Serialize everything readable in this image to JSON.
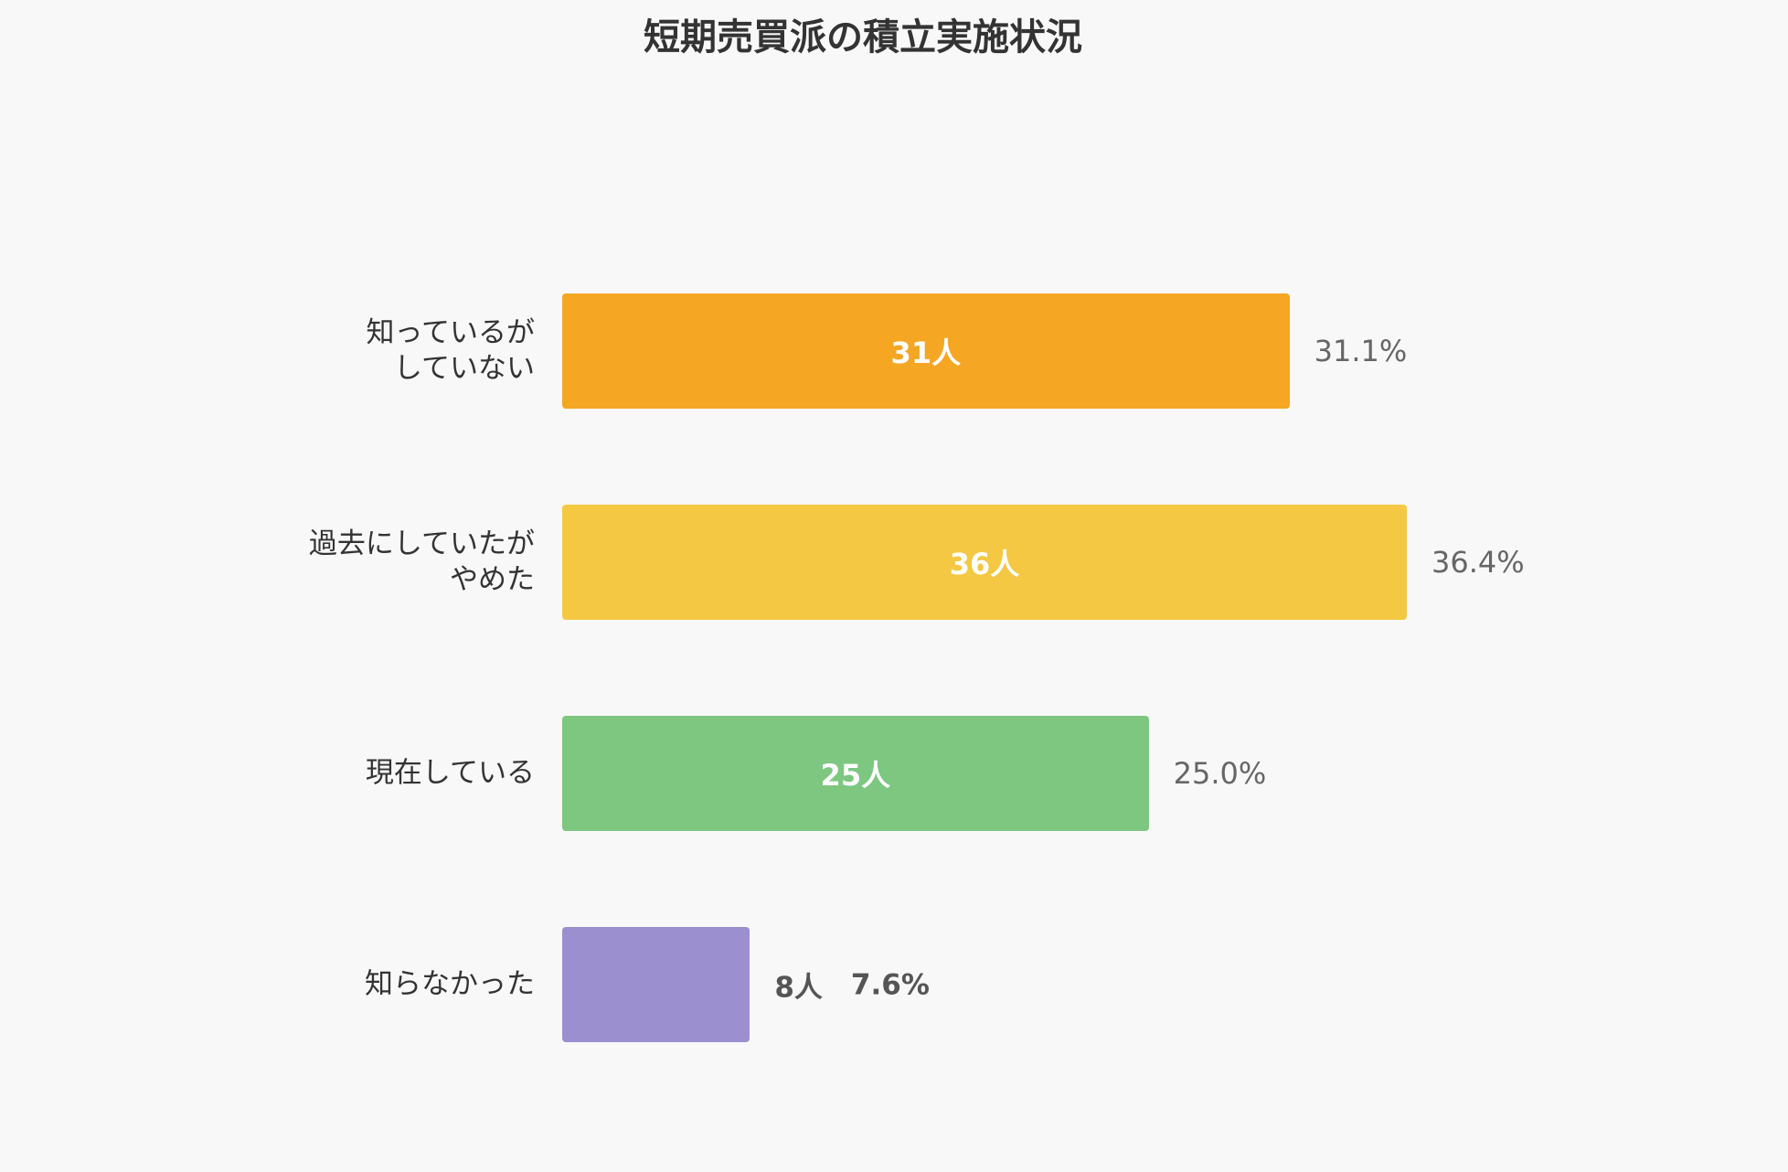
{
  "chart_data": {
    "type": "bar",
    "orientation": "horizontal",
    "title": "短期売買派の積立実施状況",
    "categories": [
      "知っているが\nしていない",
      "過去にしていたが\nやめた",
      "現在している",
      "知らなかった"
    ],
    "values": [
      31,
      36,
      25,
      8
    ],
    "value_labels": [
      "31人",
      "36人",
      "25人",
      "8人"
    ],
    "percentages": [
      31.1,
      36.4,
      25.0,
      7.6
    ],
    "percent_labels": [
      "31.1%",
      "36.4%",
      "25.0%",
      "7.6%"
    ],
    "colors": [
      "#F5A623",
      "#F4C842",
      "#7DC780",
      "#9B8FD0"
    ],
    "grid": false,
    "legend": "none"
  },
  "theme": {
    "background": "#F8F8F8",
    "text": "#333333",
    "muted_text": "#666666"
  }
}
